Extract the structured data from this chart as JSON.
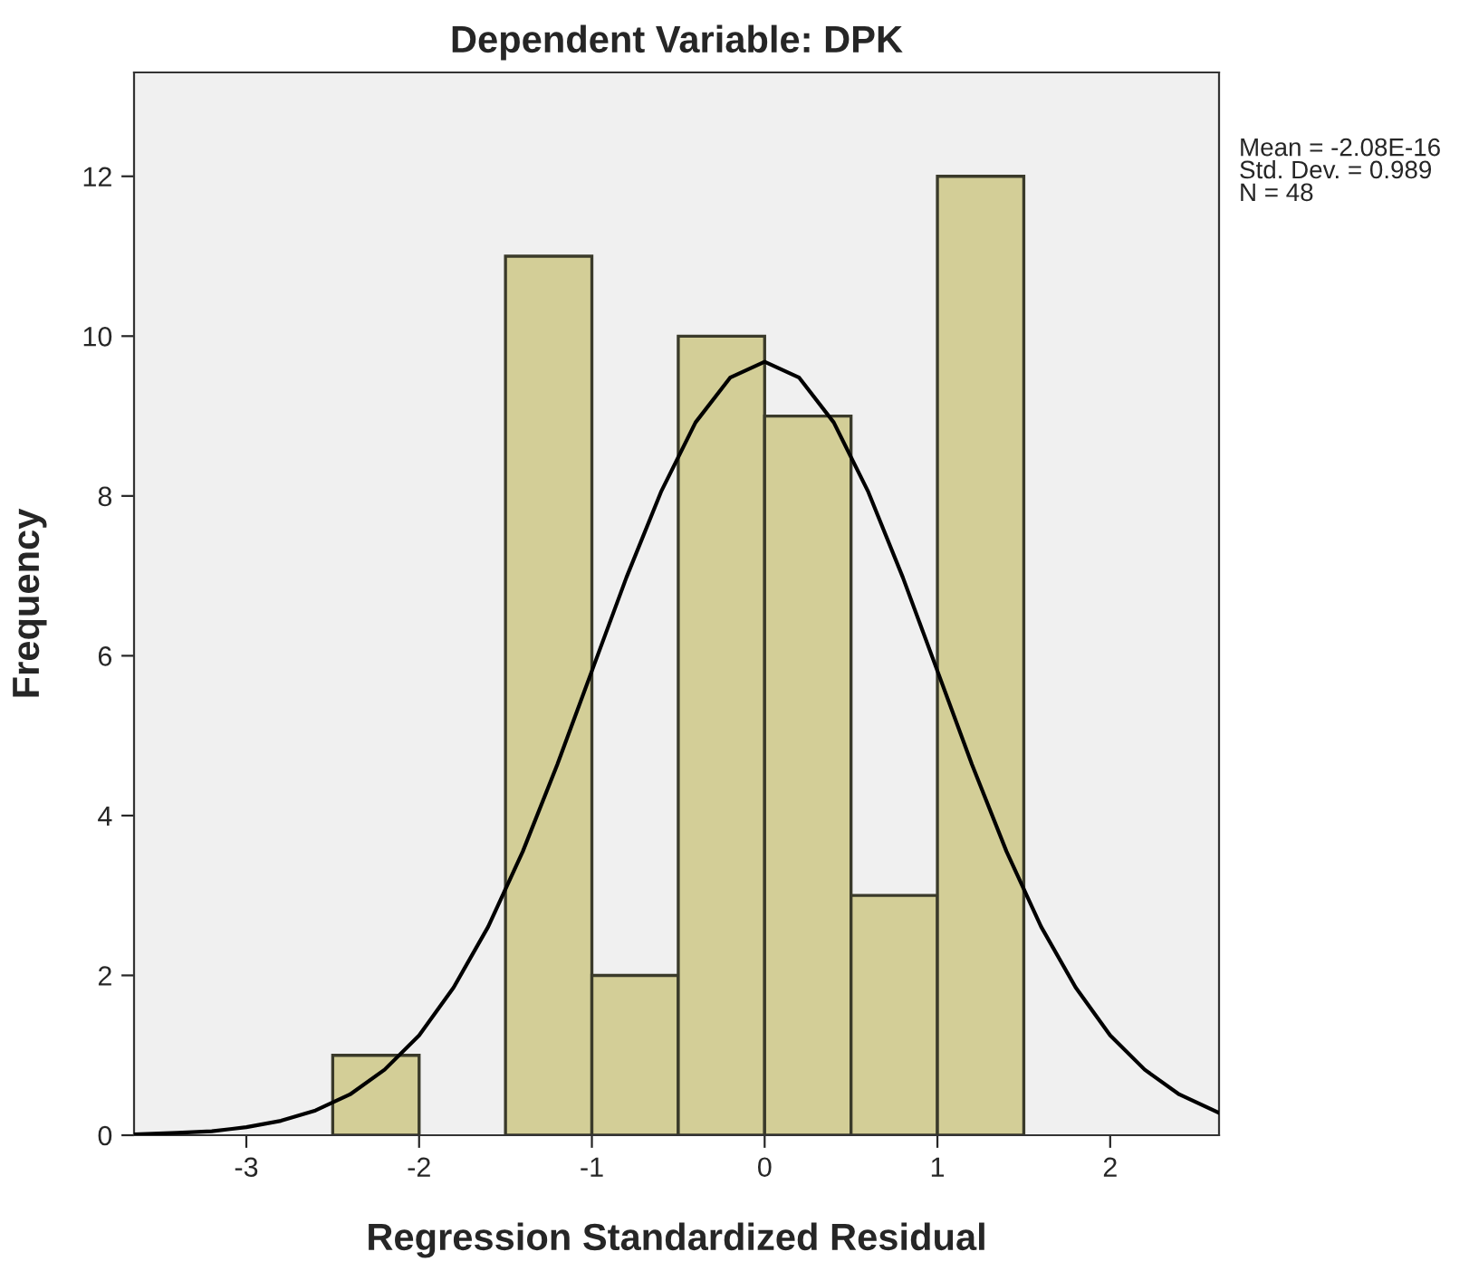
{
  "chart_data": {
    "type": "histogram",
    "title": "Dependent Variable: DPK",
    "xlabel": "Regression Standardized Residual",
    "ylabel": "Frequency",
    "annotations": [
      "Mean = -2.08E-16\nStd. Dev. = 0.989\nN = 48"
    ],
    "color": "#d3ce97",
    "bins": [
      -2.5,
      -2.0,
      -1.5,
      -1.0,
      -0.5,
      0.0,
      0.5,
      1.0,
      1.5
    ],
    "values": [
      1,
      0,
      11,
      2,
      10,
      9,
      3,
      12
    ],
    "series": [
      {
        "type": "line",
        "color": "#000000",
        "x": [
          -3.65,
          -3.4,
          -3.2,
          -3.0,
          -2.8,
          -2.6,
          -2.4,
          -2.2,
          -2.0,
          -1.8,
          -1.6,
          -1.4,
          -1.2,
          -1.0,
          -0.8,
          -0.6,
          -0.4,
          -0.2,
          0.0,
          0.2,
          0.4,
          0.6,
          0.8,
          1.0,
          1.2,
          1.4,
          1.6,
          1.8,
          2.0,
          2.2,
          2.4,
          2.63
        ],
        "values": [
          0.01,
          0.03,
          0.05,
          0.1,
          0.18,
          0.31,
          0.51,
          0.82,
          1.25,
          1.85,
          2.61,
          3.55,
          4.64,
          5.81,
          6.98,
          8.05,
          8.92,
          9.48,
          9.68,
          9.48,
          8.92,
          8.05,
          6.98,
          5.81,
          4.64,
          3.55,
          2.61,
          1.85,
          1.25,
          0.82,
          0.51,
          0.28
        ]
      }
    ],
    "xlim": [
      -3.65,
      2.63
    ],
    "ylim": [
      0,
      13.3
    ],
    "xticks": [
      -3,
      -2,
      -1,
      0,
      1,
      2
    ],
    "yticks": [
      0,
      2,
      4,
      6,
      8,
      10,
      12
    ],
    "grid": false,
    "legend": false,
    "marker": "none",
    "line_style": "solid"
  }
}
